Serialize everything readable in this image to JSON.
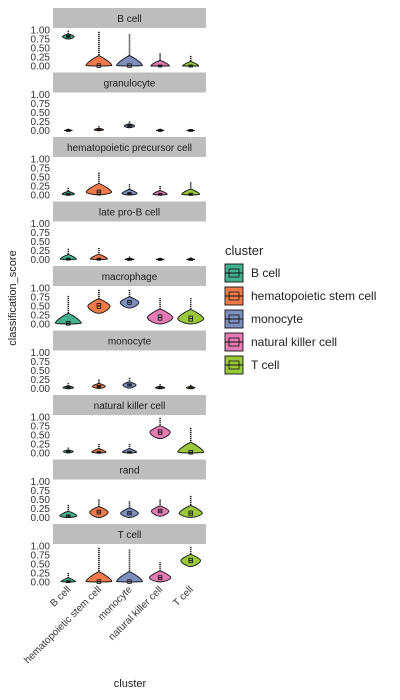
{
  "chart_data": {
    "type": "violin",
    "facet_label_y": "classification_score",
    "xlabel": "cluster",
    "ylim": [
      0,
      1
    ],
    "y_ticks": [
      "0.00",
      "0.25",
      "0.50",
      "0.75",
      "1.00"
    ],
    "categories": [
      "B cell",
      "hematopoietic stem cell",
      "monocyte",
      "natural killer cell",
      "T cell"
    ],
    "legend": {
      "title": "cluster",
      "placement": "right",
      "items": [
        {
          "name": "B cell",
          "color": "#44b08e"
        },
        {
          "name": "hematopoietic stem cell",
          "color": "#f07a4a"
        },
        {
          "name": "monocyte",
          "color": "#7d8fbd"
        },
        {
          "name": "natural killer cell",
          "color": "#e57bb5"
        },
        {
          "name": "T cell",
          "color": "#9bc83a"
        }
      ]
    },
    "panels": [
      {
        "title": "B cell",
        "medians": [
          0.82,
          0.01,
          0.01,
          0.0,
          0.0
        ],
        "max": [
          0.98,
          0.95,
          0.88,
          0.35,
          0.28
        ]
      },
      {
        "title": "granulocyte",
        "medians": [
          0.0,
          0.02,
          0.13,
          0.0,
          0.0
        ],
        "max": [
          0.05,
          0.12,
          0.25,
          0.05,
          0.04
        ]
      },
      {
        "title": "hematopoietic precursor cell",
        "medians": [
          0.02,
          0.08,
          0.04,
          0.02,
          0.02
        ],
        "max": [
          0.2,
          0.62,
          0.3,
          0.25,
          0.35
        ]
      },
      {
        "title": "late pro-B cell",
        "medians": [
          0.01,
          0.01,
          0.0,
          0.0,
          0.0
        ],
        "max": [
          0.3,
          0.32,
          0.08,
          0.05,
          0.06
        ]
      },
      {
        "title": "macrophage",
        "medians": [
          0.02,
          0.5,
          0.6,
          0.18,
          0.15
        ],
        "max": [
          0.78,
          0.95,
          0.95,
          0.72,
          0.72
        ]
      },
      {
        "title": "monocyte",
        "medians": [
          0.02,
          0.06,
          0.1,
          0.02,
          0.02
        ],
        "max": [
          0.15,
          0.25,
          0.3,
          0.12,
          0.1
        ]
      },
      {
        "title": "natural killer cell",
        "medians": [
          0.04,
          0.02,
          0.02,
          0.58,
          0.02
        ],
        "max": [
          0.15,
          0.25,
          0.25,
          0.98,
          0.7
        ]
      },
      {
        "title": "rand",
        "medians": [
          0.04,
          0.15,
          0.12,
          0.18,
          0.12
        ],
        "max": [
          0.35,
          0.5,
          0.45,
          0.5,
          0.6
        ]
      },
      {
        "title": "T cell",
        "medians": [
          0.01,
          0.01,
          0.01,
          0.12,
          0.6
        ],
        "max": [
          0.25,
          0.95,
          0.9,
          0.55,
          0.98
        ]
      }
    ]
  }
}
